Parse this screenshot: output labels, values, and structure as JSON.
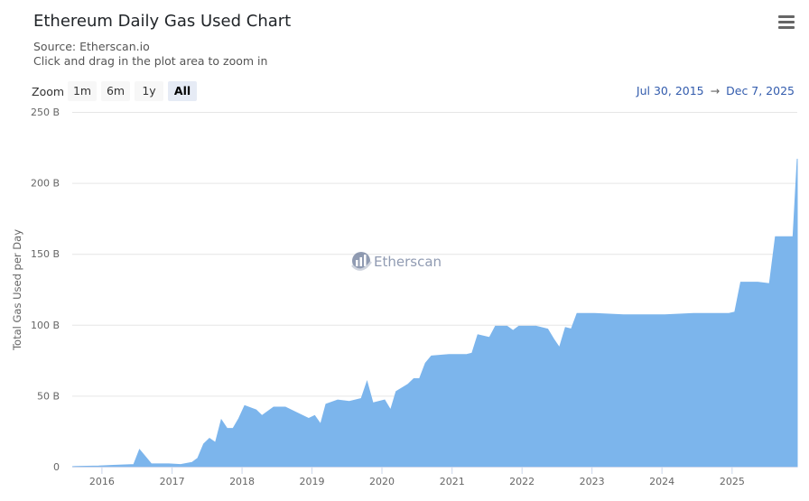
{
  "header": {
    "title": "Ethereum Daily Gas Used Chart",
    "source": "Source: Etherscan.io",
    "hint": "Click and drag in the plot area to zoom in",
    "menu_icon": "hamburger-menu-icon"
  },
  "range_selector": {
    "zoom_label": "Zoom",
    "buttons": [
      {
        "label": "1m",
        "active": false
      },
      {
        "label": "6m",
        "active": false
      },
      {
        "label": "1y",
        "active": false
      },
      {
        "label": "All",
        "active": true
      }
    ],
    "from": "Jul 30, 2015",
    "arrow": "→",
    "to": "Dec 7, 2025"
  },
  "watermark": {
    "text": "Etherscan",
    "icon": "etherscan-logo-icon"
  },
  "colors": {
    "series_fill": "#7cb5ec",
    "grid": "#e6e6e6",
    "axis_text": "#666666",
    "range_text": "#335cad"
  },
  "chart_data": {
    "type": "area",
    "title": "Ethereum Daily Gas Used Chart",
    "subtitle": "Source: Etherscan.io",
    "xlabel": "",
    "ylabel": "Total Gas Used per Day",
    "ylim": [
      0,
      250
    ],
    "y_unit": "B",
    "y_ticks": [
      "0",
      "50 B",
      "100 B",
      "150 B",
      "200 B",
      "250 B"
    ],
    "x_ticks": [
      "2016",
      "2017",
      "2018",
      "2019",
      "2020",
      "2021",
      "2022",
      "2023",
      "2024",
      "2025"
    ],
    "x_range": [
      "2015-07-30",
      "2025-12-07"
    ],
    "grid": true,
    "legend": false,
    "series": [
      {
        "name": "Total Gas Used per Day (B)",
        "x": [
          "2015-08",
          "2015-12",
          "2016-03",
          "2016-06",
          "2016-07",
          "2016-09",
          "2016-12",
          "2017-02",
          "2017-04",
          "2017-05",
          "2017-06",
          "2017-07",
          "2017-08",
          "2017-09",
          "2017-10",
          "2017-11",
          "2017-12",
          "2018-01",
          "2018-03",
          "2018-04",
          "2018-06",
          "2018-08",
          "2018-10",
          "2018-12",
          "2019-01",
          "2019-02",
          "2019-03",
          "2019-05",
          "2019-07",
          "2019-09",
          "2019-10",
          "2019-11",
          "2020-01",
          "2020-02",
          "2020-03",
          "2020-05",
          "2020-06",
          "2020-07",
          "2020-08",
          "2020-09",
          "2020-12",
          "2021-03",
          "2021-04",
          "2021-05",
          "2021-07",
          "2021-08",
          "2021-10",
          "2021-11",
          "2021-12",
          "2022-03",
          "2022-05",
          "2022-06",
          "2022-07",
          "2022-08",
          "2022-09",
          "2022-10",
          "2023-01",
          "2023-06",
          "2024-01",
          "2024-06",
          "2024-12",
          "2025-01",
          "2025-02",
          "2025-05",
          "2025-07",
          "2025-08",
          "2025-10",
          "2025-11",
          "2025-12"
        ],
        "values": [
          0.2,
          0.5,
          1,
          1.5,
          12,
          2,
          2,
          1.5,
          3,
          6,
          16,
          20,
          17,
          33,
          27,
          27,
          34,
          43,
          40,
          36,
          42,
          42,
          38,
          34,
          36,
          30,
          44,
          47,
          46,
          48,
          60,
          45,
          47,
          40,
          53,
          58,
          62,
          62,
          73,
          78,
          79,
          79,
          80,
          93,
          91,
          99,
          99,
          96,
          99,
          99,
          97,
          90,
          84,
          98,
          97,
          108,
          108,
          107,
          107,
          108,
          108,
          109,
          130,
          130,
          129,
          162,
          162,
          162,
          217
        ]
      }
    ]
  }
}
